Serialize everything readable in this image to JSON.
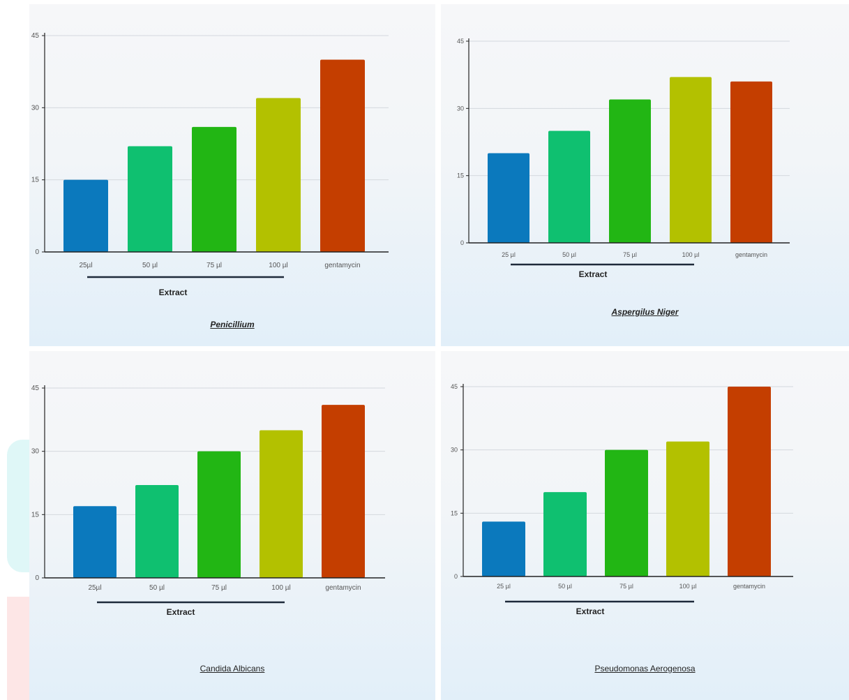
{
  "chart_data": [
    {
      "type": "bar",
      "title": "Penicillium",
      "title_style": "italic-underlined",
      "categories": [
        "25µl",
        "50 µl",
        "75 µl",
        "100 µl",
        "gentamycin"
      ],
      "values": [
        15,
        22,
        26,
        32,
        40
      ],
      "group_label": "Extract",
      "yticks": [
        "0",
        "15",
        "30",
        "45"
      ],
      "ylim": [
        0,
        45
      ],
      "grid": true
    },
    {
      "type": "bar",
      "title": "Aspergilus Niger",
      "title_style": "italic-underlined",
      "categories": [
        "25 µl",
        "50 µl",
        "75 µl",
        "100 µl",
        "gentamycin"
      ],
      "values": [
        20,
        25,
        32,
        37,
        36
      ],
      "group_label": "Extract",
      "yticks": [
        "0",
        "15",
        "30",
        "45"
      ],
      "ylim": [
        0,
        45
      ],
      "grid": true
    },
    {
      "type": "bar",
      "title": "Candida Albicans",
      "title_style": "underlined",
      "categories": [
        "25µl",
        "50 µl",
        "75 µl",
        "100 µl",
        "gentamycin"
      ],
      "values": [
        17,
        22,
        30,
        35,
        41
      ],
      "group_label": "Extract",
      "yticks": [
        "0",
        "15",
        "30",
        "45"
      ],
      "ylim": [
        0,
        45
      ],
      "grid": true
    },
    {
      "type": "bar",
      "title": "Pseudomonas Aerogenosa",
      "title_style": "underlined",
      "categories": [
        "25 µl",
        "50 µl",
        "75 µl",
        "100 µl",
        "gentamycin"
      ],
      "values": [
        13,
        20,
        30,
        32,
        45
      ],
      "group_label": "Extract",
      "yticks": [
        "0",
        "15",
        "30",
        "45"
      ],
      "ylim": [
        0,
        45
      ],
      "grid": true
    }
  ],
  "colors": {
    "bars": [
      "#0b79bd",
      "#0fc070",
      "#22b614",
      "#b3c100",
      "#c43e00"
    ],
    "axis": "#222222",
    "grid": "#d4d8de"
  }
}
